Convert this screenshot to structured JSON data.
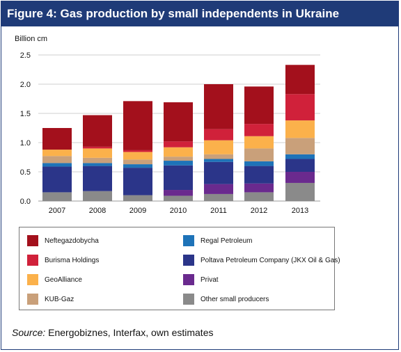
{
  "figure": {
    "title": "Figure 4: Gas production by small independents in Ukraine",
    "source_label": "Source:",
    "source_text": "Energobiznes, Interfax, own estimates"
  },
  "chart_data": {
    "type": "bar",
    "stacked": true,
    "title": "Figure 4: Gas production by small independents in Ukraine",
    "ylabel": "Billion cm",
    "xlabel": "",
    "ylim": [
      0,
      2.5
    ],
    "yticks": [
      "0.0",
      "0.5",
      "1.0",
      "1.5",
      "2.0",
      "2.5"
    ],
    "grid": true,
    "legend_position": "bottom",
    "categories": [
      "2007",
      "2008",
      "2009",
      "2010",
      "2011",
      "2012",
      "2013"
    ],
    "series": [
      {
        "name": "Other small producers",
        "color": "#8a8a8a",
        "values": [
          0.15,
          0.17,
          0.1,
          0.09,
          0.12,
          0.15,
          0.31
        ]
      },
      {
        "name": "Privat",
        "color": "#6a2a8e",
        "values": [
          0.0,
          0.0,
          0.0,
          0.1,
          0.17,
          0.15,
          0.19
        ]
      },
      {
        "name": "Poltava Petroleum Company (JKX Oil & Gas)",
        "color": "#2b3589",
        "values": [
          0.44,
          0.43,
          0.47,
          0.42,
          0.38,
          0.3,
          0.22
        ]
      },
      {
        "name": "Regal Petroleum",
        "color": "#1e73b8",
        "values": [
          0.06,
          0.05,
          0.06,
          0.08,
          0.05,
          0.08,
          0.08
        ]
      },
      {
        "name": "KUB-Gaz",
        "color": "#c9a07a",
        "values": [
          0.12,
          0.09,
          0.08,
          0.07,
          0.08,
          0.22,
          0.28
        ]
      },
      {
        "name": "GeoAlliance",
        "color": "#fbb14b",
        "values": [
          0.11,
          0.16,
          0.13,
          0.16,
          0.24,
          0.21,
          0.3
        ]
      },
      {
        "name": "Burisma Holdings",
        "color": "#d0213a",
        "values": [
          0.0,
          0.03,
          0.03,
          0.1,
          0.19,
          0.21,
          0.45
        ]
      },
      {
        "name": "Neftegazdobycha",
        "color": "#a3101c",
        "values": [
          0.37,
          0.54,
          0.84,
          0.67,
          0.77,
          0.64,
          0.5
        ]
      }
    ]
  },
  "legend": {
    "columns": [
      [
        "Neftegazdobycha",
        "Burisma Holdings",
        "GeoAlliance",
        "KUB-Gaz"
      ],
      [
        "Regal Petroleum",
        "Poltava Petroleum Company (JKX Oil & Gas)",
        "Privat",
        "Other small producers"
      ]
    ]
  }
}
